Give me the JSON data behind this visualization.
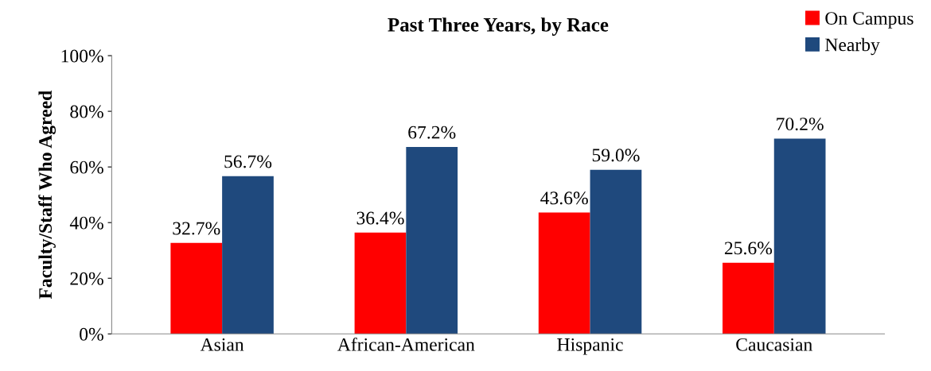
{
  "chart_data": {
    "type": "bar",
    "title": "Past Three Years, by Race",
    "ylabel": "Faculty/Staff Who Agreed",
    "categories": [
      "Asian",
      "African-American",
      "Hispanic",
      "Caucasian"
    ],
    "series": [
      {
        "name": "On Campus",
        "color": "#ff0000",
        "values": [
          32.7,
          36.4,
          43.6,
          25.6
        ],
        "value_labels": [
          "32.7%",
          "36.4%",
          "43.6%",
          "25.6%"
        ]
      },
      {
        "name": "Nearby",
        "color": "#1f497d",
        "values": [
          56.7,
          67.2,
          59.0,
          70.2
        ],
        "value_labels": [
          "56.7%",
          "67.2%",
          "59.0%",
          "70.2%"
        ]
      }
    ],
    "ylim": [
      0,
      100
    ],
    "yticks": [
      {
        "value": 0,
        "label": "0%"
      },
      {
        "value": 20,
        "label": "20%"
      },
      {
        "value": 40,
        "label": "40%"
      },
      {
        "value": 60,
        "label": "60%"
      },
      {
        "value": 80,
        "label": "80%"
      },
      {
        "value": 100,
        "label": "100%"
      }
    ],
    "grid": false,
    "legend": "top right"
  }
}
